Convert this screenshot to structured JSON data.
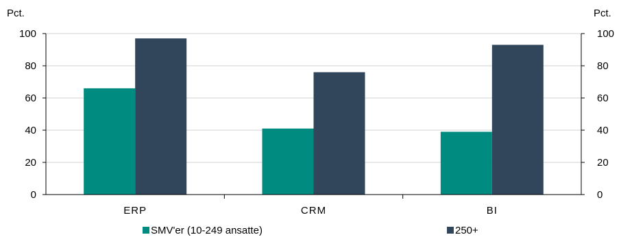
{
  "chart_data": {
    "type": "bar",
    "categories": [
      "ERP",
      "CRM",
      "BI"
    ],
    "series": [
      {
        "name": "SMV'er (10-249 ansatte)",
        "values": [
          66,
          41,
          39
        ],
        "color": "#008B80"
      },
      {
        "name": "250+",
        "values": [
          97,
          76,
          93
        ],
        "color": "#31465A"
      }
    ],
    "ylabel_left": "Pct.",
    "ylabel_right": "Pct.",
    "ylim": [
      0,
      100
    ],
    "yticks": [
      0,
      20,
      40,
      60,
      80,
      100
    ],
    "grid": true,
    "legend_position": "bottom"
  }
}
